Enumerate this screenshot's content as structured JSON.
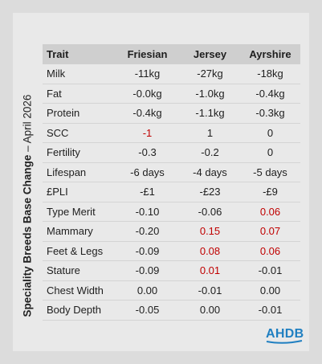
{
  "side_title": {
    "bold": "Speciality Breeds Base Change",
    "rest": " – April 2026"
  },
  "table": {
    "headers": [
      "Trait",
      "Friesian",
      "Jersey",
      "Ayrshire"
    ],
    "rows": [
      {
        "trait": "Milk",
        "values": [
          "-11kg",
          "-27kg",
          "-18kg"
        ],
        "red": [
          false,
          false,
          false
        ]
      },
      {
        "trait": "Fat",
        "values": [
          "-0.0kg",
          "-1.0kg",
          "-0.4kg"
        ],
        "red": [
          false,
          false,
          false
        ]
      },
      {
        "trait": "Protein",
        "values": [
          "-0.4kg",
          "-1.1kg",
          "-0.3kg"
        ],
        "red": [
          false,
          false,
          false
        ]
      },
      {
        "trait": "SCC",
        "values": [
          "-1",
          "1",
          "0"
        ],
        "red": [
          true,
          false,
          false
        ]
      },
      {
        "trait": "Fertility",
        "values": [
          "-0.3",
          "-0.2",
          "0"
        ],
        "red": [
          false,
          false,
          false
        ]
      },
      {
        "trait": "Lifespan",
        "values": [
          "-6 days",
          "-4 days",
          "-5 days"
        ],
        "red": [
          false,
          false,
          false
        ]
      },
      {
        "trait": "£PLI",
        "values": [
          "-£1",
          "-£23",
          "-£9"
        ],
        "red": [
          false,
          false,
          false
        ]
      },
      {
        "trait": "Type Merit",
        "values": [
          "-0.10",
          "-0.06",
          "0.06"
        ],
        "red": [
          false,
          false,
          true
        ]
      },
      {
        "trait": "Mammary",
        "values": [
          "-0.20",
          "0.15",
          "0.07"
        ],
        "red": [
          false,
          true,
          true
        ]
      },
      {
        "trait": "Feet & Legs",
        "values": [
          "-0.09",
          "0.08",
          "0.06"
        ],
        "red": [
          false,
          true,
          true
        ]
      },
      {
        "trait": "Stature",
        "values": [
          "-0.09",
          "0.01",
          "-0.01"
        ],
        "red": [
          false,
          true,
          false
        ]
      },
      {
        "trait": "Chest Width",
        "values": [
          "0.00",
          "-0.01",
          "0.00"
        ],
        "red": [
          false,
          false,
          false
        ]
      },
      {
        "trait": "Body Depth",
        "values": [
          "-0.05",
          "0.00",
          "-0.01"
        ],
        "red": [
          false,
          false,
          false
        ]
      }
    ]
  },
  "logo": {
    "text": "AHDB"
  },
  "colors": {
    "highlight": "#c00000",
    "header_bg": "#cfcfcf",
    "logo": "#1f7fc1"
  }
}
